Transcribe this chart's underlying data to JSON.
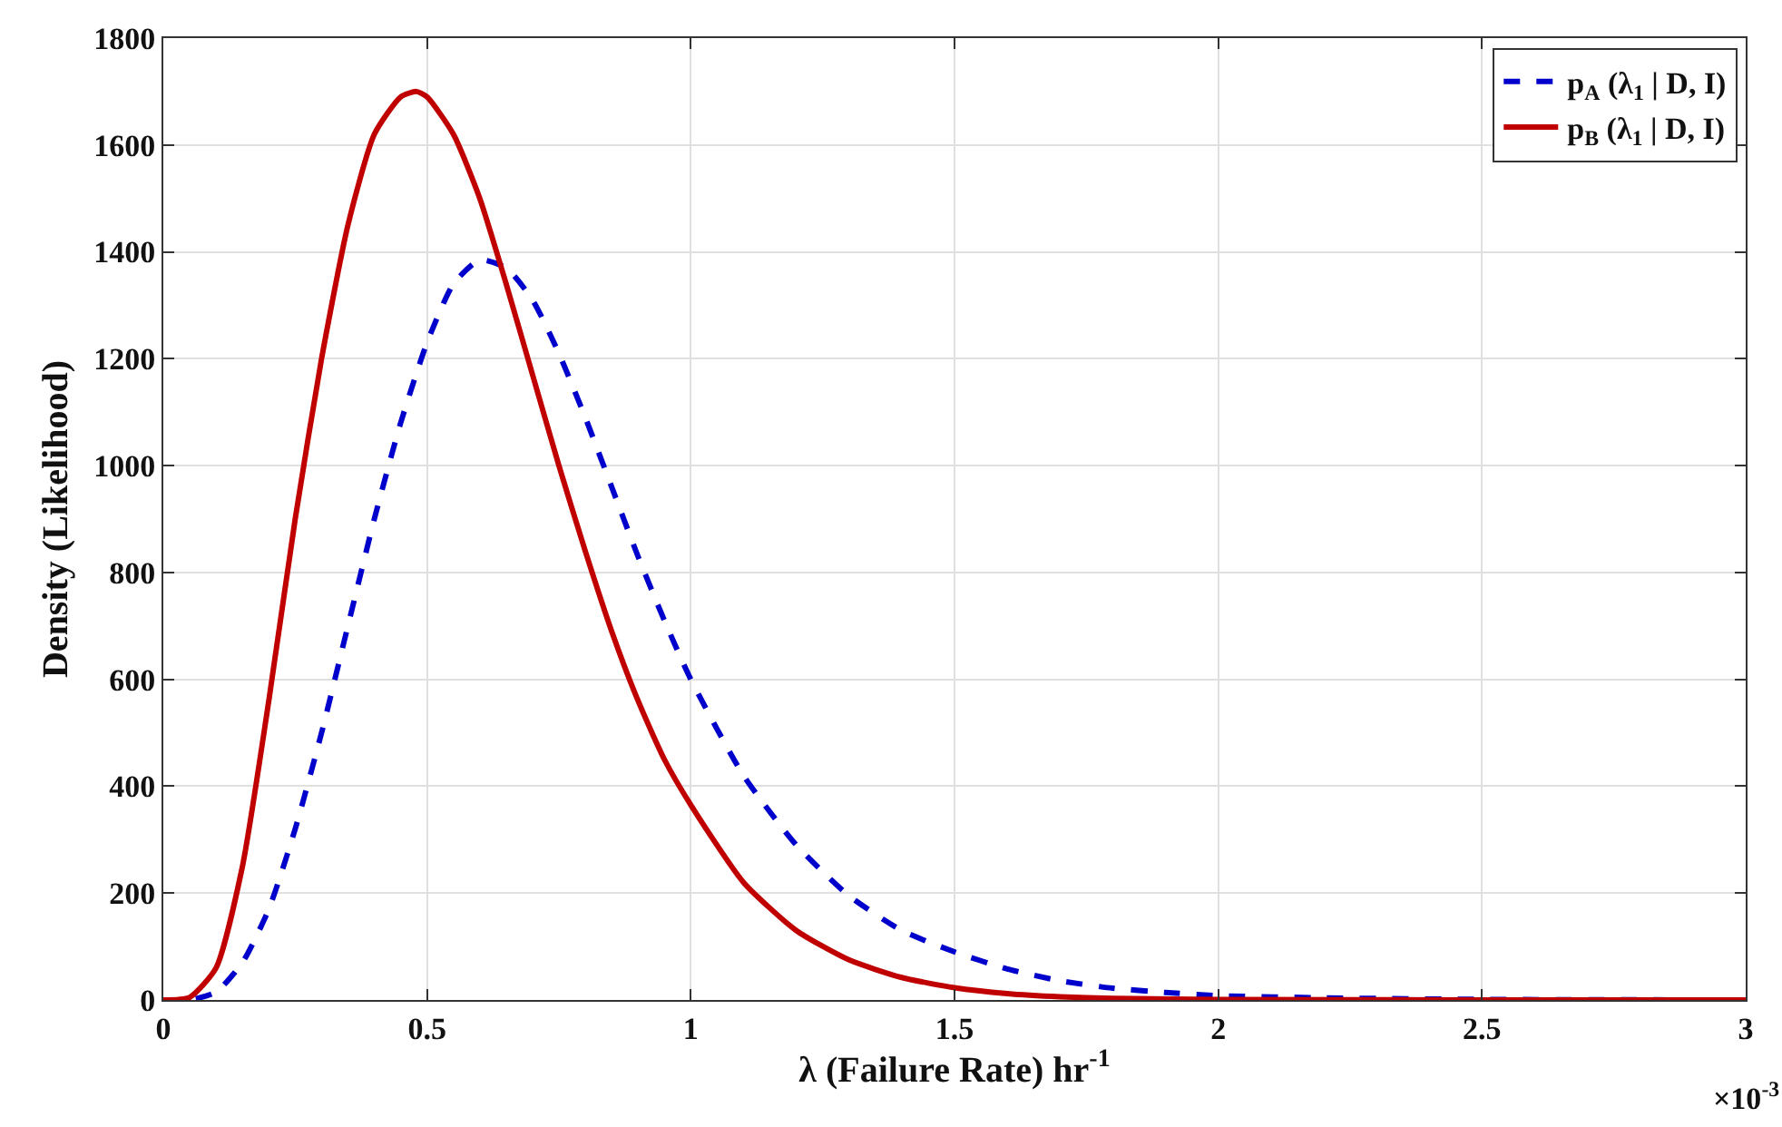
{
  "chart_data": {
    "type": "line",
    "xlabel": "λ (Failure Rate) hr$^{-1}$",
    "ylabel": "Density (Likelihood)",
    "annotations": [
      "×10$^{-3}$"
    ],
    "xlim": [
      0,
      3
    ],
    "xticks": [
      0,
      0.5,
      1,
      1.5,
      2,
      2.5,
      3
    ],
    "ylim": [
      0,
      1800
    ],
    "yticks": [
      0,
      200,
      400,
      600,
      800,
      1000,
      1200,
      1400,
      1600,
      1800
    ],
    "grid": true,
    "legend": "top right",
    "marker": "none",
    "series": [
      {
        "name": "p$_{A}$ (λ$_{1}$ | D, I)",
        "color": "#0000cc",
        "line_style": "dashed",
        "x": [
          0,
          0.05,
          0.1,
          0.15,
          0.2,
          0.25,
          0.3,
          0.35,
          0.4,
          0.45,
          0.5,
          0.55,
          0.6,
          0.65,
          0.7,
          0.75,
          0.8,
          0.85,
          0.9,
          0.95,
          1.0,
          1.1,
          1.2,
          1.3,
          1.4,
          1.5,
          1.6,
          1.7,
          1.8,
          1.9,
          2.0,
          2.2,
          2.5,
          3.0
        ],
        "values": [
          0,
          0,
          15,
          70,
          170,
          320,
          500,
          700,
          900,
          1080,
          1230,
          1340,
          1385,
          1370,
          1310,
          1210,
          1090,
          960,
          830,
          710,
          600,
          420,
          290,
          195,
          130,
          90,
          58,
          36,
          22,
          14,
          8,
          4,
          1,
          0
        ]
      },
      {
        "name": "p$_{B}$ (λ$_{1}$ | D, I)",
        "color": "#c00000",
        "line_style": "solid",
        "x": [
          0,
          0.05,
          0.1,
          0.15,
          0.2,
          0.25,
          0.3,
          0.35,
          0.4,
          0.45,
          0.48,
          0.5,
          0.55,
          0.6,
          0.65,
          0.7,
          0.75,
          0.8,
          0.85,
          0.9,
          0.95,
          1.0,
          1.1,
          1.2,
          1.3,
          1.4,
          1.5,
          1.6,
          1.7,
          1.8,
          2.0,
          2.5,
          3.0
        ],
        "values": [
          0,
          5,
          60,
          250,
          560,
          900,
          1200,
          1450,
          1620,
          1690,
          1700,
          1690,
          1620,
          1500,
          1340,
          1170,
          1000,
          840,
          690,
          560,
          450,
          365,
          220,
          130,
          75,
          42,
          23,
          12,
          6,
          3,
          1,
          0,
          0
        ]
      }
    ]
  }
}
